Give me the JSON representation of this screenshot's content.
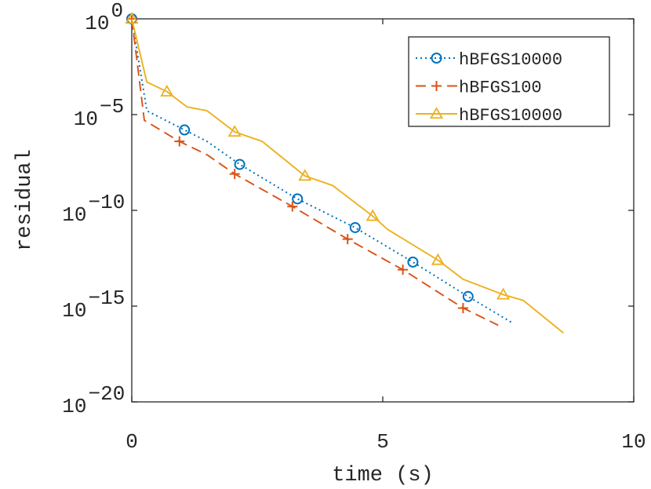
{
  "chart_data": {
    "type": "line",
    "xlabel": "time (s)",
    "ylabel": "residual",
    "xlim": [
      0,
      10
    ],
    "ylim": [
      -20,
      0
    ],
    "yscale": "log",
    "x_ticks": [
      {
        "value": 0,
        "label": "0"
      },
      {
        "value": 5,
        "label": "5"
      },
      {
        "value": 10,
        "label": "10"
      }
    ],
    "y_ticks": [
      {
        "exp": 0,
        "base": "10",
        "sup": "0"
      },
      {
        "exp": -5,
        "base": "10",
        "sup": "−5"
      },
      {
        "exp": -10,
        "base": "10",
        "sup": "−10"
      },
      {
        "exp": -15,
        "base": "10",
        "sup": "−15"
      },
      {
        "exp": -20,
        "base": "10",
        "sup": "−20"
      }
    ],
    "grid": false,
    "legend_position": "top-right",
    "series": [
      {
        "name": "hBFGS10000",
        "color": "#0072BD",
        "line_style": "dotted",
        "marker": "circle",
        "points": [
          [
            0,
            0
          ],
          [
            0.3,
            -4.8
          ],
          [
            1.05,
            -5.8
          ],
          [
            1.5,
            -6.4
          ],
          [
            2.15,
            -7.6
          ],
          [
            3.3,
            -9.4
          ],
          [
            4.45,
            -10.9
          ],
          [
            5.6,
            -12.7
          ],
          [
            6.7,
            -14.5
          ],
          [
            7.6,
            -15.9
          ]
        ],
        "markers": [
          [
            0,
            0
          ],
          [
            1.05,
            -5.8
          ],
          [
            2.15,
            -7.6
          ],
          [
            3.3,
            -9.4
          ],
          [
            4.45,
            -10.9
          ],
          [
            5.6,
            -12.7
          ],
          [
            6.7,
            -14.5
          ]
        ]
      },
      {
        "name": "hBFGS100",
        "color": "#D95319",
        "line_style": "dashed",
        "marker": "plus",
        "points": [
          [
            0,
            0
          ],
          [
            0.25,
            -5.3
          ],
          [
            0.95,
            -6.4
          ],
          [
            1.5,
            -7.1
          ],
          [
            2.05,
            -8.1
          ],
          [
            3.2,
            -9.8
          ],
          [
            4.3,
            -11.5
          ],
          [
            5.4,
            -13.1
          ],
          [
            6.6,
            -15.1
          ],
          [
            7.3,
            -16.0
          ]
        ],
        "markers": [
          [
            0,
            0
          ],
          [
            0.95,
            -6.4
          ],
          [
            2.05,
            -8.1
          ],
          [
            3.2,
            -9.8
          ],
          [
            4.3,
            -11.5
          ],
          [
            5.4,
            -13.1
          ],
          [
            6.6,
            -15.1
          ]
        ]
      },
      {
        "name": "hBFGS10000",
        "color": "#EDB120",
        "line_style": "solid",
        "marker": "triangle",
        "points": [
          [
            0,
            0
          ],
          [
            0.3,
            -3.3
          ],
          [
            0.7,
            -3.8
          ],
          [
            1.1,
            -4.6
          ],
          [
            1.5,
            -4.8
          ],
          [
            2.05,
            -5.9
          ],
          [
            2.6,
            -6.4
          ],
          [
            3.45,
            -8.2
          ],
          [
            4.0,
            -8.7
          ],
          [
            4.8,
            -10.3
          ],
          [
            5.1,
            -11.0
          ],
          [
            6.1,
            -12.6
          ],
          [
            6.6,
            -13.6
          ],
          [
            7.4,
            -14.4
          ],
          [
            7.8,
            -14.7
          ],
          [
            8.6,
            -16.4
          ]
        ],
        "markers": [
          [
            0,
            0
          ],
          [
            0.7,
            -3.8
          ],
          [
            2.05,
            -5.9
          ],
          [
            3.45,
            -8.2
          ],
          [
            4.8,
            -10.3
          ],
          [
            6.1,
            -12.6
          ],
          [
            7.4,
            -14.4
          ]
        ]
      }
    ]
  }
}
